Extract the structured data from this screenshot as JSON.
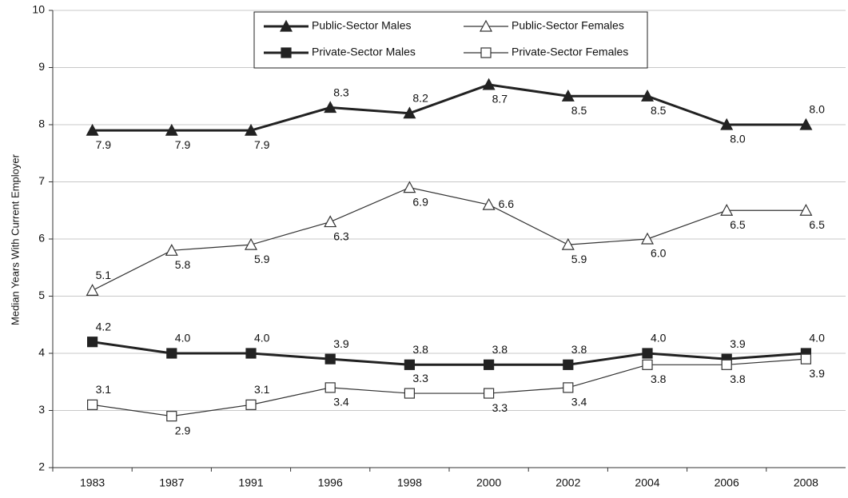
{
  "chart_data": {
    "type": "line",
    "y_label": "Median Years With Current Employer",
    "categories": [
      "1983",
      "1987",
      "1991",
      "1996",
      "1998",
      "2000",
      "2002",
      "2004",
      "2006",
      "2008"
    ],
    "ylim": [
      2,
      10
    ],
    "yticks": [
      2,
      3,
      4,
      5,
      6,
      7,
      8,
      9,
      10
    ],
    "grid": true,
    "legend": "top",
    "series": [
      {
        "name": "Public-Sector Males",
        "color": "#222222",
        "marker": "triangle",
        "filled": true,
        "line_width": 3,
        "values": [
          7.9,
          7.9,
          7.9,
          8.3,
          8.2,
          8.7,
          8.5,
          8.5,
          8.0,
          8.0
        ],
        "value_labels": [
          "7.9",
          "7.9",
          "7.9",
          "8.3",
          "8.2",
          "8.7",
          "8.5",
          "8.5",
          "8.0",
          "8.0"
        ]
      },
      {
        "name": "Public-Sector Females",
        "color": "#333333",
        "marker": "triangle",
        "filled": false,
        "line_width": 1.2,
        "values": [
          5.1,
          5.8,
          5.9,
          6.3,
          6.9,
          6.6,
          5.9,
          6.0,
          6.5,
          6.5
        ],
        "value_labels": [
          "5.1",
          "5.8",
          "5.9",
          "6.3",
          "6.9",
          "6.6",
          "5.9",
          "6.0",
          "6.5",
          "6.5"
        ]
      },
      {
        "name": "Private-Sector Males",
        "color": "#222222",
        "marker": "square",
        "filled": true,
        "line_width": 3,
        "values": [
          4.2,
          4.0,
          4.0,
          3.9,
          3.8,
          3.8,
          3.8,
          4.0,
          3.9,
          4.0
        ],
        "value_labels": [
          "4.2",
          "4.0",
          "4.0",
          "3.9",
          "3.8",
          "3.8",
          "3.8",
          "4.0",
          "3.9",
          "4.0"
        ]
      },
      {
        "name": "Private-Sector Females",
        "color": "#333333",
        "marker": "square",
        "filled": false,
        "line_width": 1.2,
        "values": [
          3.1,
          2.9,
          3.1,
          3.4,
          3.3,
          3.3,
          3.4,
          3.8,
          3.8,
          3.9
        ],
        "value_labels": [
          "3.1",
          "2.9",
          "3.1",
          "3.4",
          "3.3",
          "3.3",
          "3.4",
          "3.8",
          "3.8",
          "3.9"
        ]
      }
    ]
  }
}
